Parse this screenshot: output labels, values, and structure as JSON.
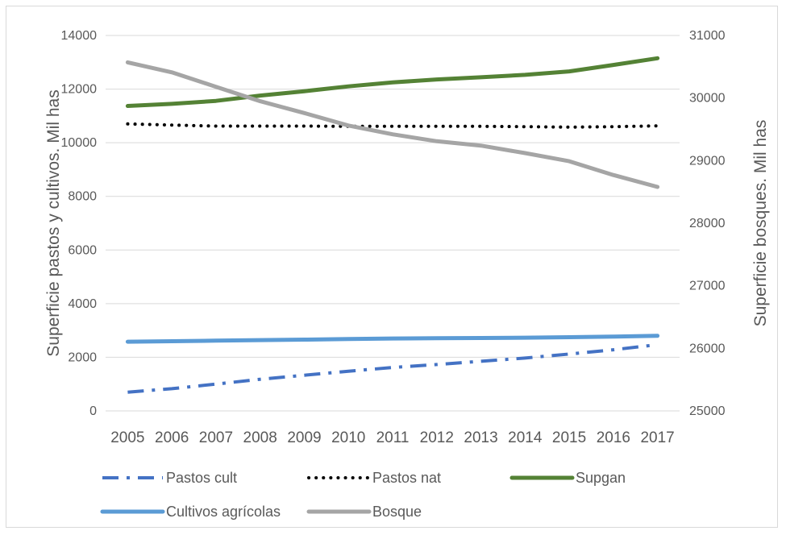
{
  "chart_data": {
    "type": "line",
    "categories": [
      "2005",
      "2006",
      "2007",
      "2008",
      "2009",
      "2010",
      "2011",
      "2012",
      "2013",
      "2014",
      "2015",
      "2016",
      "2017"
    ],
    "left_axis": {
      "label": "Superficie pastos y cultivos. Mil has",
      "min": 0,
      "max": 14000,
      "step": 2000,
      "ticks": [
        "0",
        "2000",
        "4000",
        "6000",
        "8000",
        "10000",
        "12000",
        "14000"
      ]
    },
    "right_axis": {
      "label": "Superficie bosques. Mil has",
      "min": 25000,
      "max": 31000,
      "step": 1000,
      "ticks": [
        "25000",
        "26000",
        "27000",
        "28000",
        "29000",
        "30000",
        "31000"
      ]
    },
    "gridlines": true,
    "legend_position": "bottom",
    "series": [
      {
        "name": "Pastos cult",
        "axis": "left",
        "color": "#4472c4",
        "dash": "dash-dot",
        "values": [
          700,
          830,
          1000,
          1180,
          1330,
          1480,
          1620,
          1730,
          1850,
          1970,
          2120,
          2280,
          2470
        ]
      },
      {
        "name": "Pastos nat",
        "axis": "left",
        "color": "#000000",
        "dash": "dot",
        "values": [
          10700,
          10660,
          10620,
          10620,
          10620,
          10610,
          10610,
          10610,
          10610,
          10600,
          10580,
          10600,
          10630
        ]
      },
      {
        "name": "Supgan",
        "axis": "left",
        "color": "#548235",
        "dash": "solid",
        "values": [
          11370,
          11450,
          11560,
          11760,
          11920,
          12100,
          12250,
          12360,
          12440,
          12530,
          12660,
          12900,
          13150
        ]
      },
      {
        "name": "Cultivos agrícolas",
        "axis": "left",
        "color": "#5b9bd5",
        "dash": "solid",
        "values": [
          2580,
          2600,
          2620,
          2640,
          2660,
          2680,
          2700,
          2710,
          2720,
          2730,
          2750,
          2770,
          2800
        ]
      },
      {
        "name": "Bosque",
        "axis": "right",
        "color": "#a5a5a5",
        "dash": "solid",
        "values": [
          30570,
          30410,
          30180,
          29950,
          29760,
          29560,
          29420,
          29310,
          29240,
          29120,
          28990,
          28770,
          28580
        ]
      }
    ]
  }
}
